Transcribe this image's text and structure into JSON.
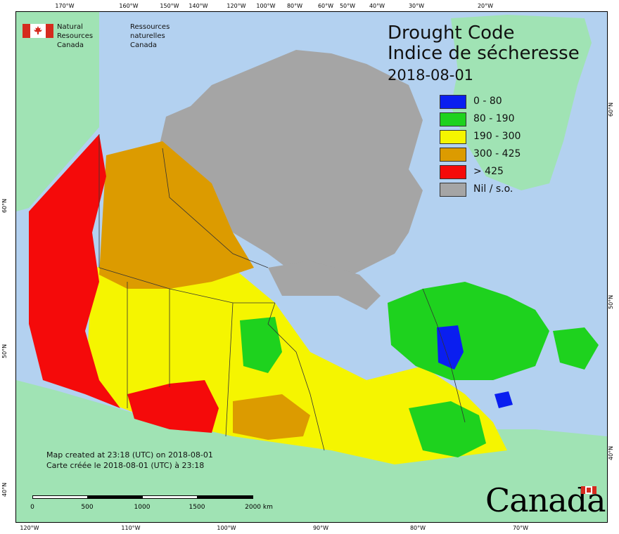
{
  "title_en": "Drought Code",
  "title_fr": "Indice de sécheresse",
  "date": "2018-08-01",
  "legend": [
    {
      "label": "0 - 80",
      "color": "#0a1ef0"
    },
    {
      "label": "80 - 190",
      "color": "#1ed21e"
    },
    {
      "label": "190 - 300",
      "color": "#f5f500"
    },
    {
      "label": "300 - 425",
      "color": "#dc9b00"
    },
    {
      "label": "> 425",
      "color": "#f50a0a"
    },
    {
      "label": "Nil / s.o.",
      "color": "#a5a5a5"
    }
  ],
  "agency": {
    "en_line1": "Natural Resources",
    "en_line2": "Canada",
    "fr_line1": "Ressources naturelles",
    "fr_line2": "Canada"
  },
  "created_en": "Map created at 23:18 (UTC) on 2018-08-01",
  "created_fr": "Carte créée le 2018-08-01 (UTC) à 23:18",
  "scale": {
    "labels": [
      "0",
      "500",
      "1000",
      "1500",
      "2000 km"
    ]
  },
  "wordmark": "Canada",
  "graticule": {
    "top": [
      "170°W",
      "160°W",
      "150°W",
      "140°W",
      "120°W",
      "100°W",
      "80°W",
      "60°W",
      "50°W",
      "40°W",
      "30°W",
      "20°W"
    ],
    "bottom": [
      "120°W",
      "110°W",
      "100°W",
      "90°W",
      "80°W",
      "70°W"
    ],
    "left": [
      "60°N",
      "50°N",
      "40°N"
    ],
    "right": [
      "60°N",
      "50°N",
      "40°N"
    ]
  },
  "colors": {
    "ocean": "#b3d1f0",
    "foreign_land": "#a0e3b4",
    "boundary": "#333333"
  }
}
